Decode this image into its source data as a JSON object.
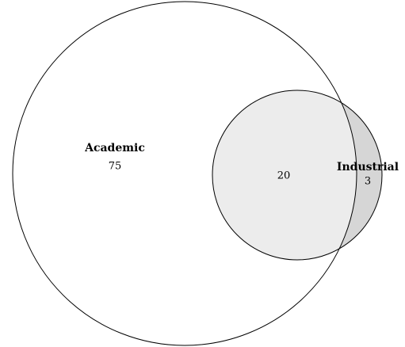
{
  "chart_data": {
    "type": "venn",
    "sets": [
      {
        "name": "Academic",
        "value": 75,
        "color": "#ffffff"
      },
      {
        "name": "Industrial",
        "value": 3,
        "color": "#d6d6d6"
      }
    ],
    "intersection": {
      "value": 20,
      "color": "#ececec"
    }
  }
}
